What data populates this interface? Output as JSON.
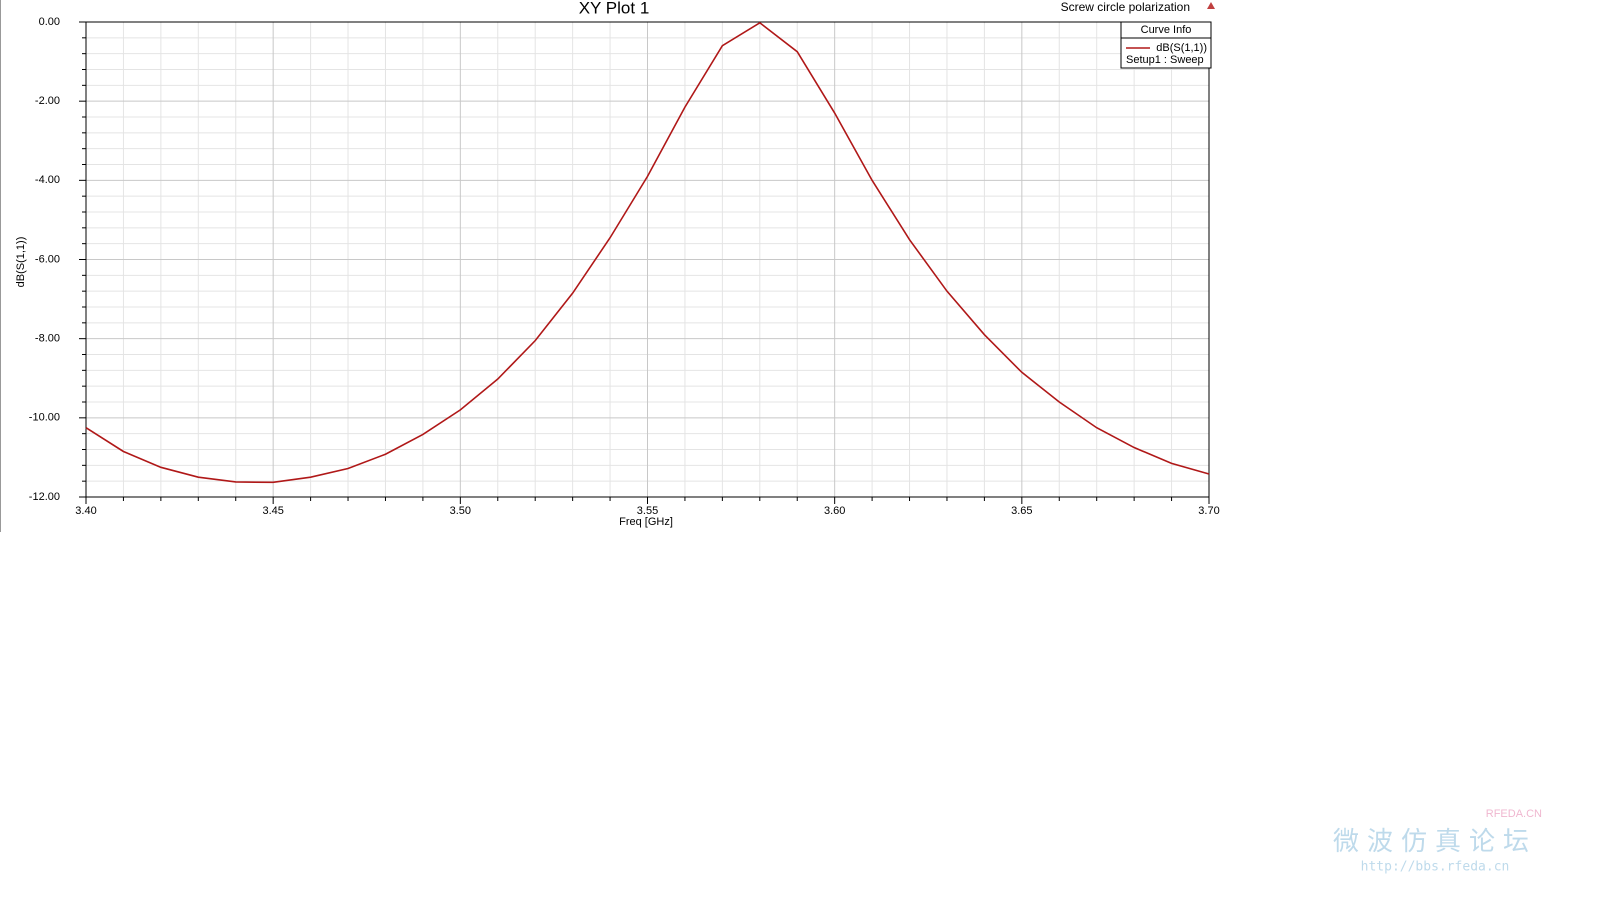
{
  "chart_data": {
    "type": "line",
    "title": "XY Plot 1",
    "subtitle": "Screw circle polarization",
    "xlabel": "Freq [GHz]",
    "ylabel": "dB(S(1,1))",
    "legend_title": "Curve Info",
    "legend_note": "Setup1 : Sweep",
    "legend_position": "upper right",
    "grid": true,
    "x": [
      3.4,
      3.41,
      3.42,
      3.43,
      3.44,
      3.45,
      3.46,
      3.47,
      3.48,
      3.49,
      3.5,
      3.51,
      3.52,
      3.53,
      3.54,
      3.55,
      3.56,
      3.57,
      3.58,
      3.59,
      3.6,
      3.61,
      3.62,
      3.63,
      3.64,
      3.65,
      3.66,
      3.67,
      3.68,
      3.69,
      3.7
    ],
    "series": [
      {
        "name": "dB(S(1,1))",
        "color": "#b01818",
        "values": [
          -10.25,
          -10.85,
          -11.25,
          -11.5,
          -11.62,
          -11.63,
          -11.5,
          -11.28,
          -10.92,
          -10.42,
          -9.8,
          -9.02,
          -8.05,
          -6.85,
          -5.45,
          -3.9,
          -2.15,
          -0.6,
          -0.02,
          -0.75,
          -2.3,
          -4.0,
          -5.5,
          -6.8,
          -7.9,
          -8.85,
          -9.6,
          -10.25,
          -10.75,
          -11.15,
          -11.42
        ]
      }
    ],
    "xlim": [
      3.4,
      3.7
    ],
    "xticks": [
      {
        "value": 3.4,
        "label": "3.40"
      },
      {
        "value": 3.45,
        "label": "3.45"
      },
      {
        "value": 3.5,
        "label": "3.50"
      },
      {
        "value": 3.55,
        "label": "3.55"
      },
      {
        "value": 3.6,
        "label": "3.60"
      },
      {
        "value": 3.65,
        "label": "3.65"
      },
      {
        "value": 3.7,
        "label": "3.70"
      }
    ],
    "ylim": [
      -12,
      0
    ],
    "yticks": [
      {
        "value": -12,
        "label": "-12.00"
      },
      {
        "value": -10,
        "label": "-10.00"
      },
      {
        "value": -8,
        "label": "-8.00"
      },
      {
        "value": -6,
        "label": "-6.00"
      },
      {
        "value": -4,
        "label": "-4.00"
      },
      {
        "value": -2,
        "label": "-2.00"
      },
      {
        "value": 0,
        "label": "0.00"
      }
    ]
  },
  "watermark": {
    "brand": "RFEDA.CN",
    "name": "微波仿真论坛",
    "url": "http://bbs.rfeda.cn"
  }
}
